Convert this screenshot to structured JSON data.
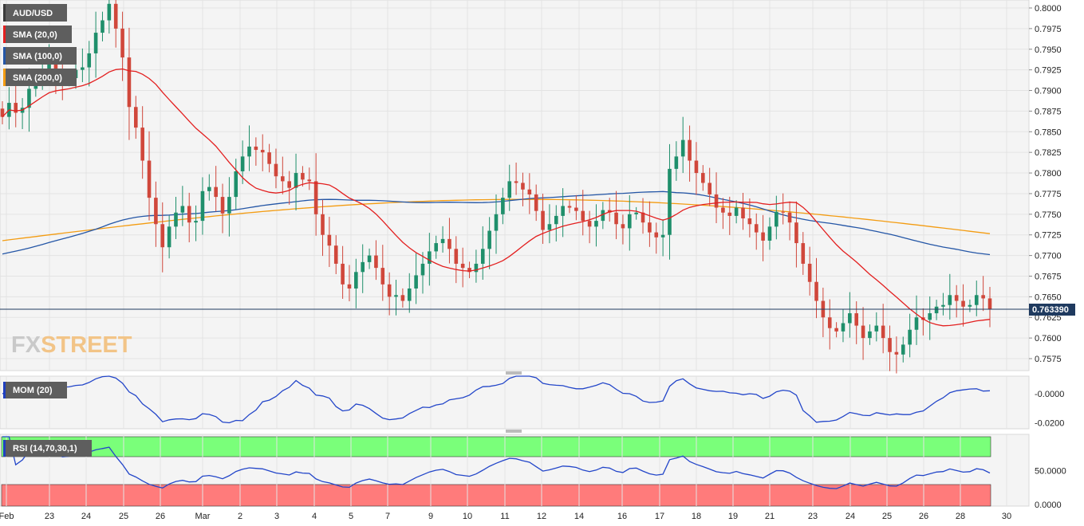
{
  "chart_data": {
    "type": "candlestick",
    "instrument": "AUD/USD",
    "current_price": "0.763390",
    "x_tick_labels": [
      "Feb",
      "23",
      "24",
      "25",
      "26",
      "Mar",
      "2",
      "3",
      "4",
      "5",
      "7",
      "9",
      "10",
      "11",
      "12",
      "14",
      "16",
      "17",
      "18",
      "19",
      "21",
      "23",
      "24",
      "25",
      "26",
      "28",
      "30"
    ],
    "price_axis": {
      "ylim": [
        0.756,
        0.801
      ],
      "ticks": [
        "0.8000",
        "0.7975",
        "0.7950",
        "0.7925",
        "0.7900",
        "0.7875",
        "0.7850",
        "0.7825",
        "0.7800",
        "0.7775",
        "0.7750",
        "0.7725",
        "0.7700",
        "0.7675",
        "0.7650",
        "0.7625",
        "0.7600",
        "0.7575"
      ]
    },
    "legend": [
      {
        "name": "AUD/USD",
        "color": "#3a3a3a"
      },
      {
        "name": "SMA (20,0)",
        "color": "#e31f1f"
      },
      {
        "name": "SMA (100,0)",
        "color": "#2456a6"
      },
      {
        "name": "SMA (200,0)",
        "color": "#f39c12"
      }
    ],
    "close_series": [
      0.7868,
      0.7885,
      0.7873,
      0.7879,
      0.7902,
      0.7914,
      0.7925,
      0.7932,
      0.7918,
      0.7912,
      0.7915,
      0.7925,
      0.7928,
      0.7945,
      0.797,
      0.7985,
      0.8005,
      0.7975,
      0.794,
      0.788,
      0.7855,
      0.7815,
      0.777,
      0.7738,
      0.771,
      0.7735,
      0.7752,
      0.776,
      0.774,
      0.7742,
      0.7778,
      0.7783,
      0.7771,
      0.7751,
      0.7771,
      0.7802,
      0.782,
      0.7832,
      0.7828,
      0.7825,
      0.7811,
      0.7796,
      0.779,
      0.7782,
      0.78,
      0.7792,
      0.779,
      0.775,
      0.7725,
      0.7712,
      0.769,
      0.7665,
      0.766,
      0.768,
      0.7692,
      0.77,
      0.7685,
      0.7665,
      0.765,
      0.7652,
      0.7645,
      0.766,
      0.7676,
      0.769,
      0.7705,
      0.7715,
      0.772,
      0.7708,
      0.769,
      0.7685,
      0.768,
      0.769,
      0.7708,
      0.773,
      0.775,
      0.777,
      0.779,
      0.7788,
      0.778,
      0.7774,
      0.7754,
      0.7731,
      0.7738,
      0.7748,
      0.776,
      0.7758,
      0.7754,
      0.7742,
      0.7735,
      0.7742,
      0.7755,
      0.7752,
      0.7738,
      0.7733,
      0.775,
      0.7752,
      0.774,
      0.7728,
      0.7722,
      0.7725,
      0.7805,
      0.782,
      0.784,
      0.7815,
      0.78,
      0.7788,
      0.7774,
      0.7758,
      0.7752,
      0.7748,
      0.7758,
      0.7745,
      0.7738,
      0.7728,
      0.7718,
      0.7735,
      0.7753,
      0.7752,
      0.774,
      0.7715,
      0.769,
      0.7668,
      0.7645,
      0.7625,
      0.7612,
      0.7608,
      0.7618,
      0.763,
      0.7615,
      0.76,
      0.7608,
      0.7615,
      0.76,
      0.7583,
      0.758,
      0.7592,
      0.761,
      0.7625,
      0.7622,
      0.763,
      0.7638,
      0.764,
      0.7652,
      0.7645,
      0.7638,
      0.764,
      0.7652,
      0.7648,
      0.7635
    ],
    "momentum": {
      "label": "MOM (20)",
      "ylim": [
        -0.024,
        0.012
      ],
      "ticks": [
        "-0.0000",
        "-0.0200"
      ]
    },
    "rsi": {
      "label": "RSI (14,70,30,1)",
      "overbought": 70,
      "oversold": 30,
      "ylim": [
        0,
        100
      ],
      "ticks": [
        "50.0000",
        "0.0000"
      ]
    }
  },
  "watermark": {
    "fx": "FX",
    "street": "STREET"
  }
}
